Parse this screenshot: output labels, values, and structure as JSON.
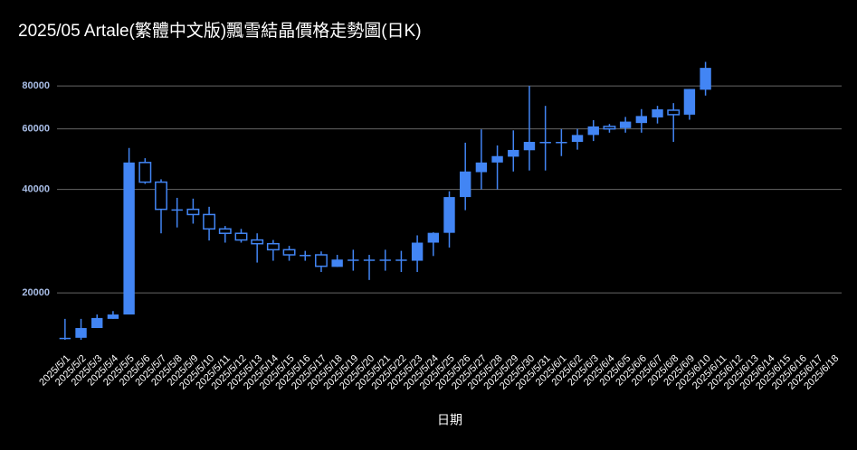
{
  "chart_data": {
    "type": "candlestick",
    "title": "2025/05 Artale(繁體中文版)飄雪結晶價格走勢圖(日K)",
    "x_label": "日期",
    "categories": [
      "2025/5/1",
      "2025/5/2",
      "2025/5/3",
      "2025/5/4",
      "2025/5/5",
      "2025/5/6",
      "2025/5/7",
      "2025/5/8",
      "2025/5/9",
      "2025/5/10",
      "2025/5/11",
      "2025/5/12",
      "2025/5/13",
      "2025/5/14",
      "2025/5/15",
      "2025/5/16",
      "2025/5/17",
      "2025/5/18",
      "2025/5/19",
      "2025/5/20",
      "2025/5/21",
      "2025/5/22",
      "2025/5/23",
      "2025/5/24",
      "2025/5/25",
      "2025/5/26",
      "2025/5/27",
      "2025/5/28",
      "2025/5/29",
      "2025/5/30",
      "2025/5/31",
      "2025/6/1",
      "2025/6/2",
      "2025/6/3",
      "2025/6/4",
      "2025/6/5",
      "2025/6/6",
      "2025/6/7",
      "2025/6/8",
      "2025/6/9",
      "2025/6/10",
      "2025/6/11",
      "2025/6/12",
      "2025/6/13",
      "2025/6/14",
      "2025/6/15",
      "2025/6/16",
      "2025/6/17",
      "2025/6/18"
    ],
    "open": [
      14800,
      14800,
      15800,
      16800,
      17300,
      47900,
      42000,
      35000,
      35000,
      33800,
      30700,
      29800,
      28500,
      27800,
      26700,
      25800,
      25800,
      23800,
      25000,
      25000,
      25000,
      25000,
      24800,
      28000,
      29900,
      38000,
      44900,
      47900,
      49800,
      52000,
      55000,
      55000,
      55000,
      57600,
      61000,
      60300,
      62400,
      64800,
      68000,
      66000,
      78000,
      null,
      null,
      null,
      null,
      null,
      null,
      null,
      null
    ],
    "high": [
      16800,
      16800,
      17300,
      17700,
      52800,
      49300,
      42800,
      37800,
      37600,
      35600,
      31300,
      30700,
      29800,
      28500,
      27400,
      26500,
      26400,
      25800,
      26700,
      25800,
      26700,
      26500,
      29400,
      30000,
      39500,
      54700,
      59800,
      53700,
      59400,
      80000,
      70000,
      59900,
      60000,
      63600,
      62000,
      65000,
      68500,
      70000,
      71300,
      78400,
      94000,
      null,
      null,
      null,
      null,
      null,
      null,
      null,
      null
    ],
    "low": [
      14600,
      14600,
      15800,
      16800,
      17300,
      41500,
      29800,
      31000,
      31800,
      28400,
      28000,
      28000,
      24500,
      24800,
      24800,
      24800,
      23000,
      23800,
      23200,
      21800,
      23200,
      23000,
      23000,
      25600,
      27100,
      34800,
      40000,
      40000,
      45100,
      45400,
      45400,
      50000,
      52200,
      55300,
      58500,
      58500,
      58500,
      62200,
      55000,
      63800,
      75000,
      null,
      null,
      null,
      null,
      null,
      null,
      null,
      null
    ],
    "close": [
      14800,
      15800,
      16900,
      17300,
      47900,
      42000,
      35000,
      35000,
      33800,
      30700,
      29800,
      28500,
      27800,
      26700,
      25800,
      25800,
      23900,
      25000,
      25000,
      25000,
      25000,
      25000,
      28000,
      29900,
      38000,
      45100,
      47900,
      50000,
      52100,
      55000,
      55000,
      55000,
      57600,
      61000,
      60000,
      63000,
      65400,
      68400,
      66000,
      78400,
      90300,
      null,
      null,
      null,
      null,
      null,
      null,
      null,
      null
    ],
    "color": "#4285f4",
    "log_scale": true,
    "grid": true,
    "ylim": [
      14000,
      96000
    ],
    "yticks": [
      20000,
      40000,
      60000,
      80000
    ]
  }
}
